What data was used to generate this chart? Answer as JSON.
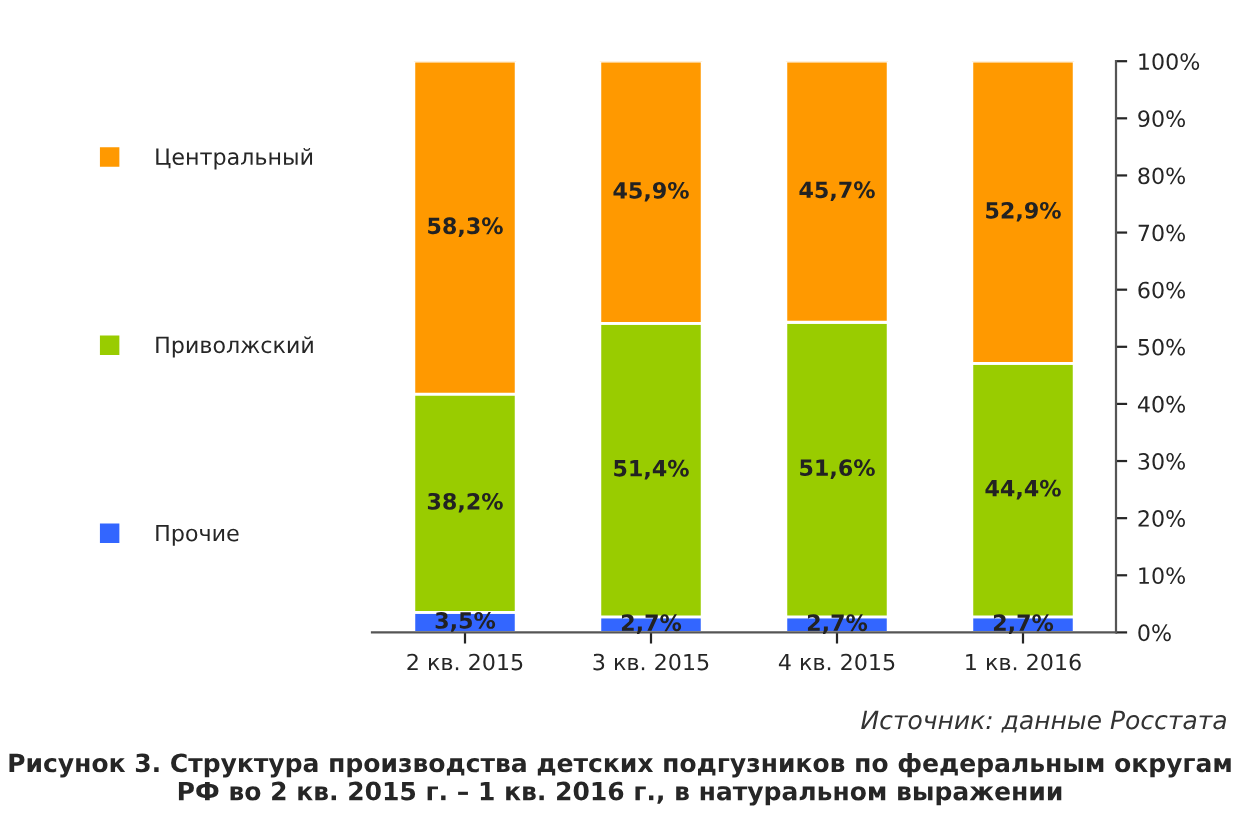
{
  "chart_data": {
    "type": "bar",
    "stacked": true,
    "title": "Рисунок 3. Структура производства детских подгузников по федеральным округам РФ во 2 кв. 2015 г. – 1 кв. 2016 г., в натуральном выражении",
    "annotations": [
      "Источник: данные Росстата"
    ],
    "categories": [
      "2 кв. 2015",
      "3 кв. 2015",
      "4 кв. 2015",
      "1 кв. 2016"
    ],
    "series": [
      {
        "name": "Прочие",
        "color": "#3366ff",
        "values": [
          3.5,
          2.7,
          2.7,
          2.7
        ],
        "value_labels": [
          "3,5%",
          "2,7%",
          "2,7%",
          "2,7%"
        ]
      },
      {
        "name": "Приволжский",
        "color": "#99cc00",
        "values": [
          38.2,
          51.4,
          51.6,
          44.4
        ],
        "value_labels": [
          "38,2%",
          "51,4%",
          "51,6%",
          "44,4%"
        ]
      },
      {
        "name": "Центральный",
        "color": "#ff9900",
        "values": [
          58.3,
          45.9,
          45.7,
          52.9
        ],
        "value_labels": [
          "58,3%",
          "45,9%",
          "45,7%",
          "52,9%"
        ]
      }
    ],
    "ylim": [
      0,
      100
    ],
    "yticks": [
      {
        "value": 0,
        "label": "0%"
      },
      {
        "value": 10,
        "label": "10%"
      },
      {
        "value": 20,
        "label": "20%"
      },
      {
        "value": 30,
        "label": "30%"
      },
      {
        "value": 40,
        "label": "40%"
      },
      {
        "value": 50,
        "label": "50%"
      },
      {
        "value": 60,
        "label": "60%"
      },
      {
        "value": 70,
        "label": "70%"
      },
      {
        "value": 80,
        "label": "80%"
      },
      {
        "value": 90,
        "label": "90%"
      },
      {
        "value": 100,
        "label": "100%"
      }
    ],
    "grid": false,
    "legend": "left"
  }
}
